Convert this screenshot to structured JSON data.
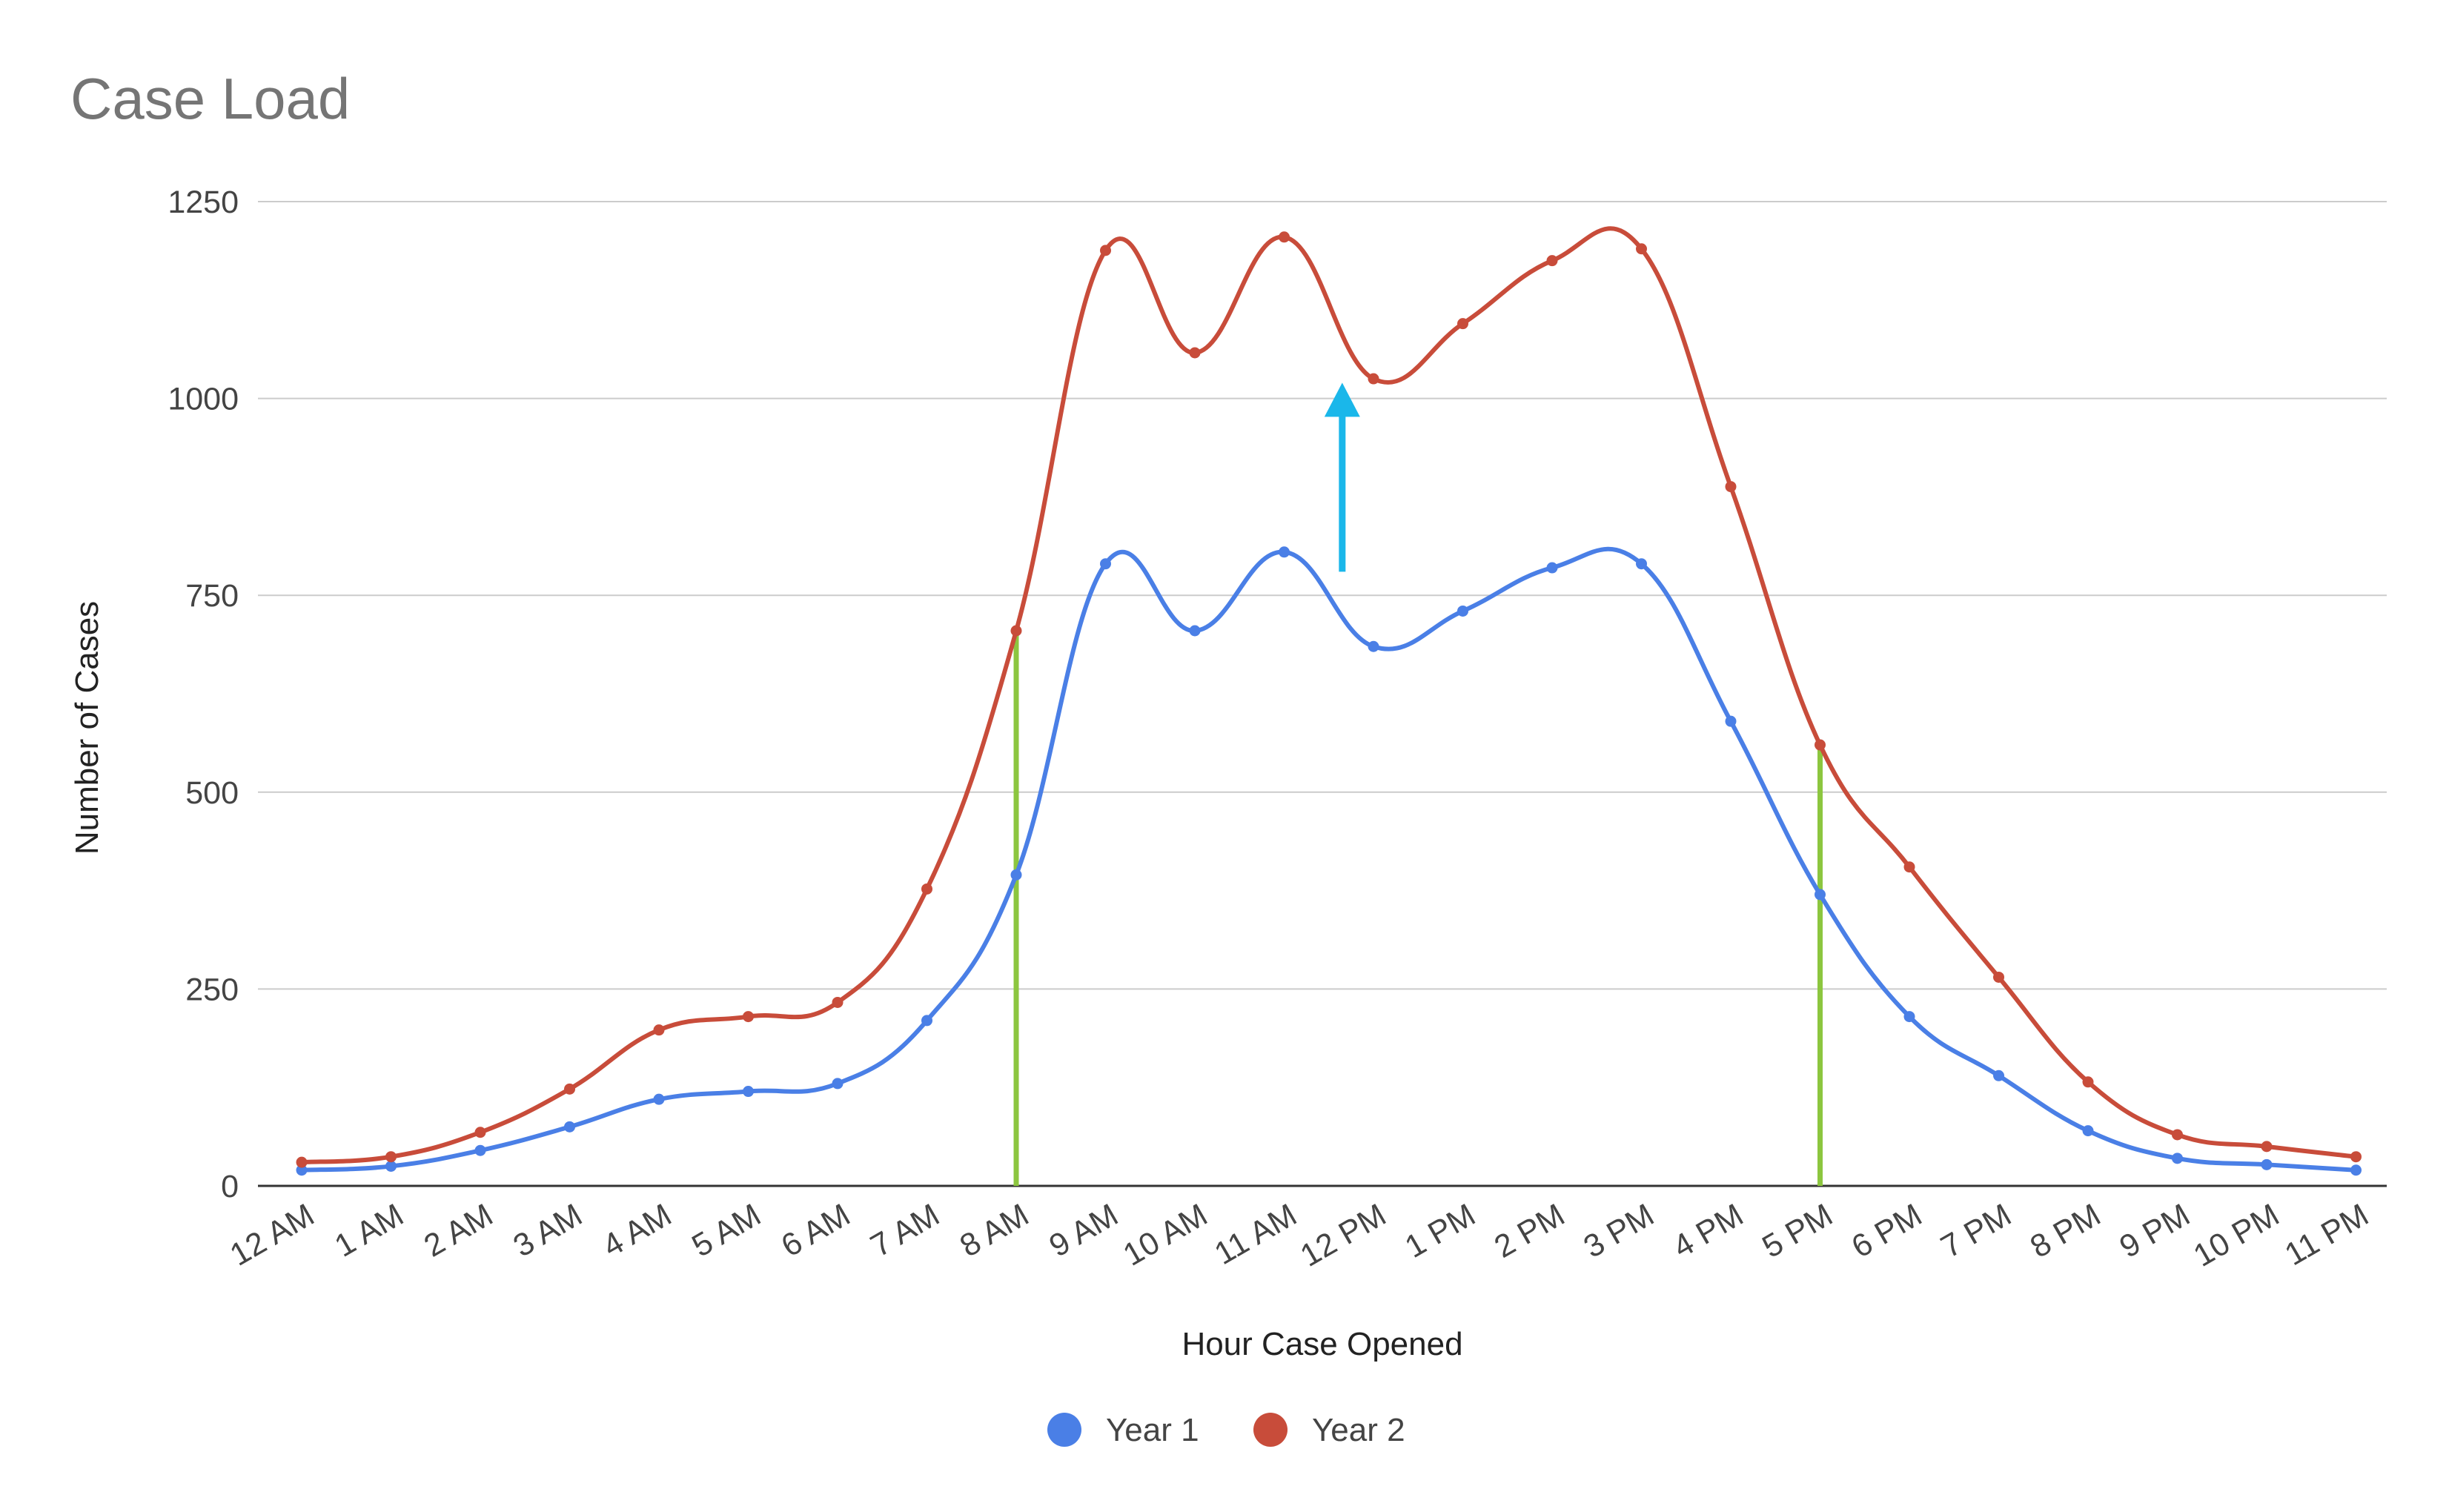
{
  "chart_data": {
    "type": "line",
    "title": "Case Load",
    "xlabel": "Hour Case Opened",
    "ylabel": "Number of Cases",
    "ylim": [
      0,
      1250
    ],
    "yticks": [
      0,
      250,
      500,
      750,
      1000,
      1250
    ],
    "grid": true,
    "smooth": true,
    "legend_position": "bottom",
    "categories": [
      "12 AM",
      "1 AM",
      "2 AM",
      "3 AM",
      "4 AM",
      "5 AM",
      "6 AM",
      "7 AM",
      "8 AM",
      "9 AM",
      "10 AM",
      "11 AM",
      "12 PM",
      "1 PM",
      "2 PM",
      "3 PM",
      "4 PM",
      "5 PM",
      "6 PM",
      "7 PM",
      "8 PM",
      "9 PM",
      "10 PM",
      "11 PM"
    ],
    "series": [
      {
        "name": "Year 1",
        "color": "#4a7fe6",
        "values": [
          20,
          25,
          45,
          75,
          110,
          120,
          130,
          210,
          395,
          790,
          705,
          805,
          685,
          730,
          785,
          790,
          590,
          370,
          215,
          140,
          70,
          35,
          27,
          20
        ]
      },
      {
        "name": "Year 2",
        "color": "#c84c3a",
        "values": [
          30,
          37,
          68,
          123,
          198,
          215,
          233,
          377,
          705,
          1188,
          1058,
          1205,
          1025,
          1095,
          1175,
          1190,
          888,
          560,
          405,
          265,
          132,
          65,
          50,
          37
        ]
      }
    ],
    "annotations": {
      "vertical_lines": [
        {
          "category": "8 AM",
          "y_top": 705,
          "color": "#8cc63f"
        },
        {
          "category": "5 PM",
          "y_top": 565,
          "color": "#8cc63f"
        }
      ],
      "arrow": {
        "category_position": 11.65,
        "y_from": 780,
        "y_to": 1020,
        "color": "#1ab7ea"
      }
    }
  }
}
